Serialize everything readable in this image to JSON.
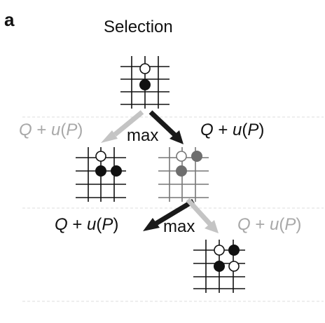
{
  "panel_label": "a",
  "title": "Selection",
  "labels": {
    "q_plus_u_left_top": {
      "q": "Q",
      "op": " + ",
      "u": "u",
      "open": "(",
      "p": "P",
      "close": ")"
    },
    "q_plus_u_right_top": {
      "q": "Q",
      "op": " + ",
      "u": "u",
      "open": "(",
      "p": "P",
      "close": ")"
    },
    "q_plus_u_left_bottom": {
      "q": "Q",
      "op": " + ",
      "u": "u",
      "open": "(",
      "p": "P",
      "close": ")"
    },
    "q_plus_u_right_bottom": {
      "q": "Q",
      "op": " + ",
      "u": "u",
      "open": "(",
      "p": "P",
      "close": ")"
    },
    "max_top": "max",
    "max_bottom": "max"
  },
  "colors": {
    "black": "#111111",
    "selected_arrow": "#1a1a1a",
    "unselected_arrow": "#c4c4c4",
    "grey_label": "#a8a8a8",
    "grey_board": "#777777",
    "grey_stone": "#6e6e6e",
    "divider": "#dddddd"
  }
}
